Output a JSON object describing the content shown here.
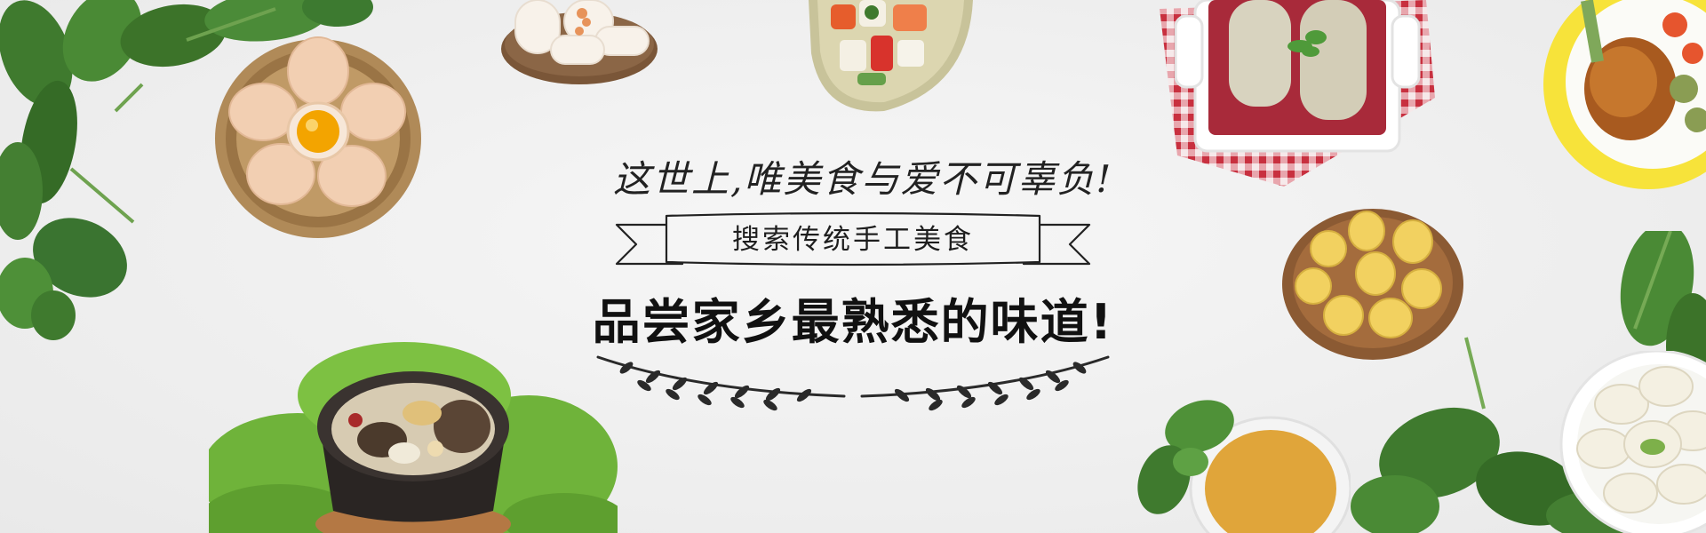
{
  "banner": {
    "tagline": "这世上,唯美食与爱不可辜负!",
    "ribbon_label": "搜索传统手工美食",
    "headline": "品尝家乡最熟悉的味道!"
  },
  "colors": {
    "background": "#f1f1f1",
    "text": "#111111",
    "spinach": "#3f7a2e",
    "egg": "#f2cfb2",
    "yolk": "#f3a400",
    "basket": "#a07a4a",
    "gingham": "#d03a48",
    "curry": "#e0a53a",
    "plate_yellow": "#f7e33a"
  },
  "decorations": [
    "spinach-leaves-top-left-icon",
    "egg-basket-icon",
    "rice-cakes-plate-icon",
    "sushi-plate-icon",
    "stuffed-rolls-dish-icon",
    "roast-chicken-plate-icon",
    "potato-basket-icon",
    "stone-pot-soup-icon",
    "curry-powder-bowl-icon",
    "spinach-leaves-bottom-right-icon",
    "dumplings-plate-icon",
    "laurel-divider-icon"
  ]
}
